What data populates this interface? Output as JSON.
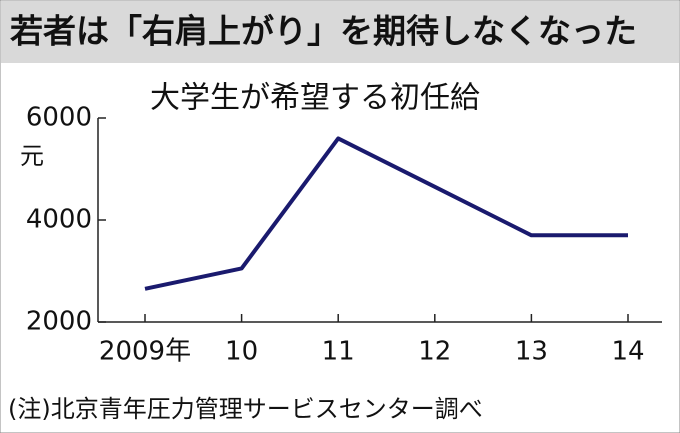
{
  "chart_data": {
    "type": "line",
    "title": "若者は「右肩上がり」を期待しなくなった",
    "subtitle": "大学生が希望する初任給",
    "y_unit": "元",
    "note": "(注)北京青年圧力管理サービスセンター調べ",
    "categories": [
      "2009年",
      "10",
      "11",
      "12",
      "13",
      "14"
    ],
    "series": [
      {
        "name": null,
        "color": "#1a1a6e",
        "values": [
          2650,
          3050,
          5600,
          4650,
          3700,
          3700
        ]
      }
    ],
    "ylim": [
      2000,
      6000
    ],
    "yticks": [
      2000,
      4000,
      6000
    ]
  }
}
